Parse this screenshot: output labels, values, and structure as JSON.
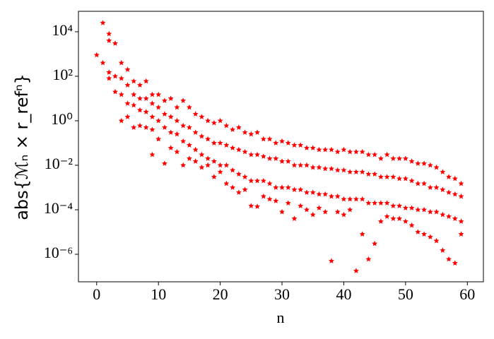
{
  "chart_data": {
    "type": "scatter",
    "xlabel": "n",
    "ylabel": "abs{ℳₙ × r_refⁿ}",
    "color": "#ff0000",
    "yscale": "log",
    "xlim": [
      -2.95,
      62.6
    ],
    "ylim": [
      5.8e-08,
      83000.0
    ],
    "xticks": [
      0,
      10,
      20,
      30,
      40,
      50,
      60
    ],
    "yticks": [
      {
        "value": 1e-06,
        "label": "10⁻⁶"
      },
      {
        "value": 0.0001,
        "label": "10⁻⁴"
      },
      {
        "value": 0.01,
        "label": "10⁻²"
      },
      {
        "value": 1,
        "label": "10⁰"
      },
      {
        "value": 100,
        "label": "10²"
      },
      {
        "value": 10000,
        "label": "10⁴"
      }
    ],
    "x": [
      0,
      1,
      1,
      2,
      2,
      2,
      2,
      3,
      3,
      3,
      4,
      4,
      4,
      4,
      5,
      5,
      5,
      5,
      6,
      6,
      6,
      6,
      7,
      7,
      7,
      7,
      8,
      8,
      8,
      8,
      9,
      9,
      9,
      9,
      9,
      10,
      10,
      10,
      10,
      11,
      11,
      11,
      11,
      12,
      12,
      12,
      12,
      13,
      13,
      13,
      13,
      14,
      14,
      14,
      14,
      15,
      15,
      15,
      15,
      16,
      16,
      16,
      16,
      17,
      17,
      17,
      17,
      18,
      18,
      18,
      18,
      19,
      19,
      19,
      19,
      20,
      20,
      20,
      20,
      21,
      21,
      21,
      21,
      22,
      22,
      22,
      22,
      23,
      23,
      23,
      23,
      24,
      24,
      24,
      24,
      25,
      25,
      25,
      25,
      26,
      26,
      26,
      26,
      27,
      27,
      27,
      27,
      28,
      28,
      28,
      28,
      29,
      29,
      29,
      29,
      30,
      30,
      30,
      30,
      31,
      31,
      31,
      31,
      32,
      32,
      32,
      32,
      33,
      33,
      33,
      33,
      34,
      34,
      34,
      34,
      35,
      35,
      35,
      35,
      36,
      36,
      36,
      36,
      37,
      37,
      37,
      37,
      38,
      38,
      38,
      38,
      39,
      39,
      39,
      39,
      40,
      40,
      40,
      40,
      41,
      41,
      41,
      41,
      42,
      42,
      42,
      42,
      43,
      43,
      43,
      43,
      44,
      44,
      44,
      44,
      45,
      45,
      45,
      45,
      46,
      46,
      46,
      46,
      47,
      47,
      47,
      47,
      48,
      48,
      48,
      48,
      49,
      49,
      49,
      49,
      50,
      50,
      50,
      50,
      51,
      51,
      51,
      51,
      52,
      52,
      52,
      52,
      53,
      53,
      53,
      53,
      54,
      54,
      54,
      54,
      55,
      55,
      55,
      55,
      56,
      56,
      56,
      56,
      57,
      57,
      57,
      57,
      58,
      58,
      58,
      58,
      59,
      59,
      59,
      59
    ],
    "values": [
      900,
      25000,
      400,
      8000,
      4000,
      150,
      80,
      3000,
      100,
      20,
      400,
      80,
      15,
      1,
      200,
      40,
      6,
      1.5,
      60,
      15,
      5,
      0.5,
      40,
      10,
      3,
      0.6,
      60,
      10,
      2.5,
      0.5,
      15,
      6,
      1.5,
      0.4,
      0.03,
      15,
      4,
      1,
      0.15,
      8,
      2,
      0.5,
      0.012,
      10,
      1.5,
      0.3,
      0.06,
      4,
      1,
      0.25,
      0.04,
      8,
      0.6,
      0.12,
      0.01,
      4,
      0.5,
      0.08,
      0.02,
      2,
      0.3,
      0.05,
      0.015,
      1.5,
      0.2,
      0.03,
      0.008,
      1,
      0.15,
      0.02,
      0.01,
      0.8,
      0.1,
      0.015,
      0.003,
      1,
      0.1,
      0.01,
      0.005,
      0.6,
      0.08,
      0.01,
      0.0015,
      0.4,
      0.06,
      0.006,
      0.001,
      0.5,
      0.05,
      0.004,
      0.0006,
      0.3,
      0.04,
      0.003,
      0.0008,
      0.25,
      0.03,
      0.002,
      0.00015,
      0.3,
      0.03,
      0.002,
      0.00014,
      0.15,
      0.025,
      0.002,
      0.0004,
      0.15,
      0.02,
      0.0015,
      0.0003,
      0.1,
      0.02,
      0.001,
      0.00025,
      0.12,
      0.015,
      0.001,
      8e-05,
      0.1,
      0.015,
      0.001,
      0.0002,
      0.08,
      0.01,
      0.0008,
      4e-05,
      0.08,
      0.01,
      0.0008,
      0.00015,
      0.06,
      0.01,
      0.0006,
      0.0001,
      0.06,
      0.008,
      0.0006,
      6e-05,
      0.05,
      0.008,
      0.0005,
      0.00012,
      0.05,
      0.007,
      0.0005,
      8e-05,
      0.05,
      0.007,
      0.0004,
      5e-07,
      0.04,
      0.006,
      0.0004,
      8e-05,
      0.05,
      0.006,
      0.0003,
      6e-05,
      0.04,
      0.005,
      0.0003,
      0.0001,
      0.04,
      0.005,
      0.0003,
      1.8e-07,
      0.04,
      0.005,
      0.0003,
      8e-06,
      0.03,
      0.004,
      0.0002,
      6e-07,
      0.03,
      0.004,
      0.0002,
      3e-06,
      0.02,
      0.003,
      0.0002,
      3e-05,
      0.03,
      0.003,
      0.0002,
      5e-05,
      0.02,
      0.003,
      0.00015,
      4e-05,
      0.02,
      0.0025,
      0.00015,
      4e-05,
      0.02,
      0.0025,
      0.00012,
      3e-05,
      0.015,
      0.002,
      0.00012,
      2e-05,
      0.012,
      0.0015,
      0.0001,
      1e-05,
      0.012,
      0.0015,
      0.0001,
      8e-06,
      0.01,
      0.001,
      8e-05,
      6e-06,
      0.008,
      0.001,
      8e-05,
      4e-06,
      0.005,
      0.0008,
      6e-05,
      1.5e-06,
      0.003,
      0.0006,
      5e-05,
      6e-07,
      0.0025,
      0.0005,
      4e-05,
      4e-07,
      0.0015,
      0.0004,
      3e-05,
      8e-06
    ]
  }
}
